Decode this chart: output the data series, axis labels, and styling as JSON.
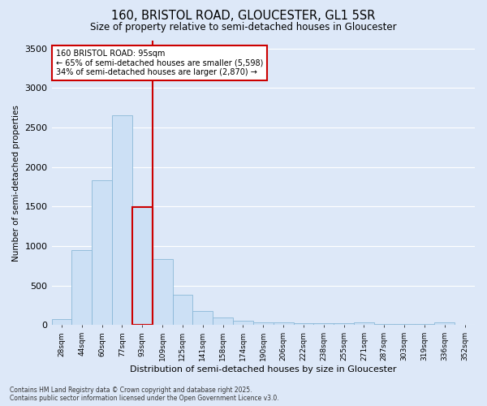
{
  "title": "160, BRISTOL ROAD, GLOUCESTER, GL1 5SR",
  "subtitle": "Size of property relative to semi-detached houses in Gloucester",
  "xlabel": "Distribution of semi-detached houses by size in Gloucester",
  "ylabel": "Number of semi-detached properties",
  "annotation_text": "160 BRISTOL ROAD: 95sqm\n← 65% of semi-detached houses are smaller (5,598)\n34% of semi-detached houses are larger (2,870) →",
  "footer": "Contains HM Land Registry data © Crown copyright and database right 2025.\nContains public sector information licensed under the Open Government Licence v3.0.",
  "categories": [
    "28sqm",
    "44sqm",
    "60sqm",
    "77sqm",
    "93sqm",
    "109sqm",
    "125sqm",
    "141sqm",
    "158sqm",
    "174sqm",
    "190sqm",
    "206sqm",
    "222sqm",
    "238sqm",
    "255sqm",
    "271sqm",
    "287sqm",
    "303sqm",
    "319sqm",
    "336sqm",
    "352sqm"
  ],
  "values": [
    80,
    950,
    1830,
    2650,
    1490,
    840,
    380,
    175,
    100,
    55,
    40,
    35,
    30,
    25,
    20,
    35,
    15,
    10,
    10,
    35,
    0
  ],
  "bar_color": "#cce0f5",
  "bar_edge_color": "#8ab8d8",
  "highlight_bar_index": 4,
  "highlight_line_color": "#cc0000",
  "annotation_box_color": "#cc0000",
  "ylim": [
    0,
    3600
  ],
  "yticks": [
    0,
    500,
    1000,
    1500,
    2000,
    2500,
    3000,
    3500
  ],
  "background_color": "#dde8f8",
  "grid_color": "#ffffff"
}
